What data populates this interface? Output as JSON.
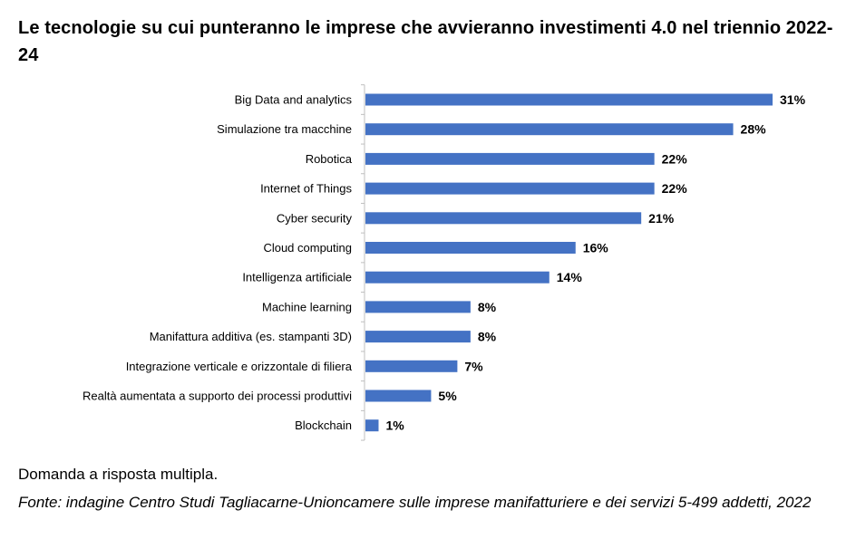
{
  "chart_data": {
    "type": "bar",
    "orientation": "horizontal",
    "title": "Le tecnologie su cui punteranno le imprese che avvieranno investimenti 4.0 nel triennio 2022-24",
    "categories": [
      "Big Data and analytics",
      "Simulazione tra macchine",
      "Robotica",
      "Internet of Things",
      "Cyber security",
      "Cloud computing",
      "Intelligenza artificiale",
      "Machine learning",
      "Manifattura additiva (es. stampanti 3D)",
      "Integrazione verticale e orizzontale di filiera",
      "Realtà aumentata a supporto dei processi produttivi",
      "Blockchain"
    ],
    "values": [
      31,
      28,
      22,
      22,
      21,
      16,
      14,
      8,
      8,
      7,
      5,
      1
    ],
    "value_labels": [
      "31%",
      "28%",
      "22%",
      "22%",
      "21%",
      "16%",
      "14%",
      "8%",
      "8%",
      "7%",
      "5%",
      "1%"
    ],
    "xlim": [
      0,
      31
    ],
    "grid": false,
    "legend": "none",
    "bar_color": "#4472C4",
    "axis_color": "#BFBFBF"
  },
  "footer": {
    "note": "Domanda a risposta multipla.",
    "source": "Fonte: indagine Centro Studi Tagliacarne-Unioncamere sulle imprese manifatturiere e dei servizi 5-499 addetti, 2022"
  }
}
